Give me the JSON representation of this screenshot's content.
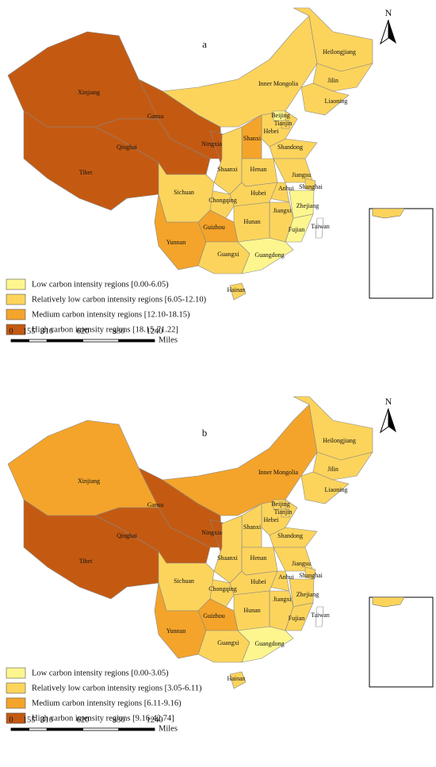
{
  "maps": [
    {
      "label": "a",
      "north": "N",
      "scale": {
        "ticks": [
          0,
          155,
          310,
          620,
          930,
          1240
        ],
        "unit": "Miles"
      },
      "legend": [
        {
          "label": "Low carbon intensity regions [0.00-6.05)",
          "color": "#fdf68e"
        },
        {
          "label": "Relatively low carbon intensity regions [6.05-12.10)",
          "color": "#fcd45c"
        },
        {
          "label": "Medium carbon intensity regions [12.10-18.15)",
          "color": "#f4a42a"
        },
        {
          "label": "High carbon intensity regions [18.15-71.22]",
          "color": "#c45a12"
        }
      ],
      "provinces": [
        {
          "name": "Xinjiang",
          "class": 3
        },
        {
          "name": "Tibet",
          "class": 3
        },
        {
          "name": "Qinghai",
          "class": 3
        },
        {
          "name": "Gansu",
          "class": 3
        },
        {
          "name": "Ningxia",
          "class": 3
        },
        {
          "name": "Inner Mongolia",
          "class": 1
        },
        {
          "name": "Heilongjiang",
          "class": 1
        },
        {
          "name": "Jilin",
          "class": 1
        },
        {
          "name": "Liaoning",
          "class": 1
        },
        {
          "name": "Hebei",
          "class": 1
        },
        {
          "name": "Beijing",
          "class": 0
        },
        {
          "name": "Tianjin",
          "class": 1
        },
        {
          "name": "Shanxi",
          "class": 2
        },
        {
          "name": "Shandong",
          "class": 1
        },
        {
          "name": "Shaanxi",
          "class": 1
        },
        {
          "name": "Henan",
          "class": 1
        },
        {
          "name": "Jiangsu",
          "class": 1
        },
        {
          "name": "Anhui",
          "class": 1
        },
        {
          "name": "Shanghai",
          "class": 1
        },
        {
          "name": "Zhejiang",
          "class": 0
        },
        {
          "name": "Hubei",
          "class": 1
        },
        {
          "name": "Chongqing",
          "class": 1
        },
        {
          "name": "Sichuan",
          "class": 1
        },
        {
          "name": "Jiangxi",
          "class": 1
        },
        {
          "name": "Hunan",
          "class": 1
        },
        {
          "name": "Fujian",
          "class": 0
        },
        {
          "name": "Guizhou",
          "class": 2
        },
        {
          "name": "Yunnan",
          "class": 2
        },
        {
          "name": "Guangxi",
          "class": 1
        },
        {
          "name": "Guangdong",
          "class": 0
        },
        {
          "name": "Hainan",
          "class": 1
        },
        {
          "name": "Taiwan",
          "class": null
        }
      ]
    },
    {
      "label": "b",
      "north": "N",
      "scale": {
        "ticks": [
          0,
          155,
          310,
          620,
          930,
          1240
        ],
        "unit": "Miles"
      },
      "legend": [
        {
          "label": "Low carbon intensity regions [0.00-3.05)",
          "color": "#fdf68e"
        },
        {
          "label": "Relatively low carbon intensity regions [3.05-6.11)",
          "color": "#fcd45c"
        },
        {
          "label": "Medium carbon intensity regions [6.11-9.16)",
          "color": "#f4a42a"
        },
        {
          "label": "High carbon intensity regions [9.16-42.74]",
          "color": "#c45a12"
        }
      ],
      "provinces": [
        {
          "name": "Xinjiang",
          "class": 2
        },
        {
          "name": "Tibet",
          "class": 3
        },
        {
          "name": "Qinghai",
          "class": 3
        },
        {
          "name": "Gansu",
          "class": 3
        },
        {
          "name": "Ningxia",
          "class": 3
        },
        {
          "name": "Inner Mongolia",
          "class": 2
        },
        {
          "name": "Heilongjiang",
          "class": 1
        },
        {
          "name": "Jilin",
          "class": 1
        },
        {
          "name": "Liaoning",
          "class": 1
        },
        {
          "name": "Hebei",
          "class": 1
        },
        {
          "name": "Beijing",
          "class": 1
        },
        {
          "name": "Tianjin",
          "class": 1
        },
        {
          "name": "Shanxi",
          "class": 1
        },
        {
          "name": "Shandong",
          "class": 1
        },
        {
          "name": "Shaanxi",
          "class": 1
        },
        {
          "name": "Henan",
          "class": 1
        },
        {
          "name": "Jiangsu",
          "class": 1
        },
        {
          "name": "Anhui",
          "class": 1
        },
        {
          "name": "Shanghai",
          "class": 1
        },
        {
          "name": "Zhejiang",
          "class": 1
        },
        {
          "name": "Hubei",
          "class": 1
        },
        {
          "name": "Chongqing",
          "class": 1
        },
        {
          "name": "Sichuan",
          "class": 1
        },
        {
          "name": "Jiangxi",
          "class": 1
        },
        {
          "name": "Hunan",
          "class": 1
        },
        {
          "name": "Fujian",
          "class": 1
        },
        {
          "name": "Guizhou",
          "class": 2
        },
        {
          "name": "Yunnan",
          "class": 2
        },
        {
          "name": "Guangxi",
          "class": 1
        },
        {
          "name": "Guangdong",
          "class": 0
        },
        {
          "name": "Hainan",
          "class": 1
        },
        {
          "name": "Taiwan",
          "class": null
        }
      ]
    }
  ]
}
